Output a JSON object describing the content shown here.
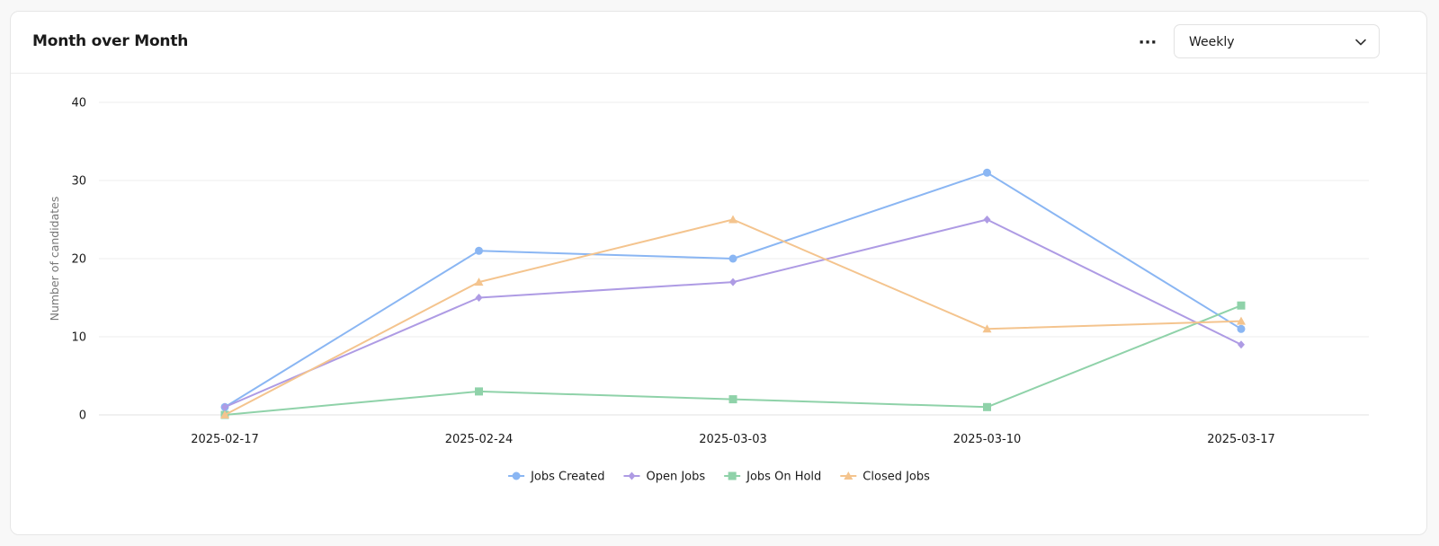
{
  "header": {
    "title": "Month over Month",
    "more_label": "···",
    "period_select": {
      "value": "Weekly"
    }
  },
  "chart_data": {
    "type": "line",
    "title": "",
    "xlabel": "",
    "ylabel": "Number of candidates",
    "x": [
      "2025-02-17",
      "2025-02-24",
      "2025-03-03",
      "2025-03-10",
      "2025-03-17"
    ],
    "ylim": [
      0,
      40
    ],
    "yticks": [
      0,
      10,
      20,
      30,
      40
    ],
    "grid": true,
    "legend_position": "bottom",
    "series": [
      {
        "name": "Jobs Created",
        "marker": "circle",
        "color": "#8ab6f3",
        "values": [
          1,
          21,
          20,
          31,
          11
        ]
      },
      {
        "name": "Open Jobs",
        "marker": "diamond",
        "color": "#ae9be4",
        "values": [
          1,
          15,
          17,
          25,
          9
        ]
      },
      {
        "name": "Jobs On Hold",
        "marker": "square",
        "color": "#8fd2a9",
        "values": [
          0,
          3,
          2,
          1,
          14
        ]
      },
      {
        "name": "Closed Jobs",
        "marker": "triangle",
        "color": "#f4c48e",
        "values": [
          0,
          17,
          25,
          11,
          12
        ]
      }
    ]
  }
}
